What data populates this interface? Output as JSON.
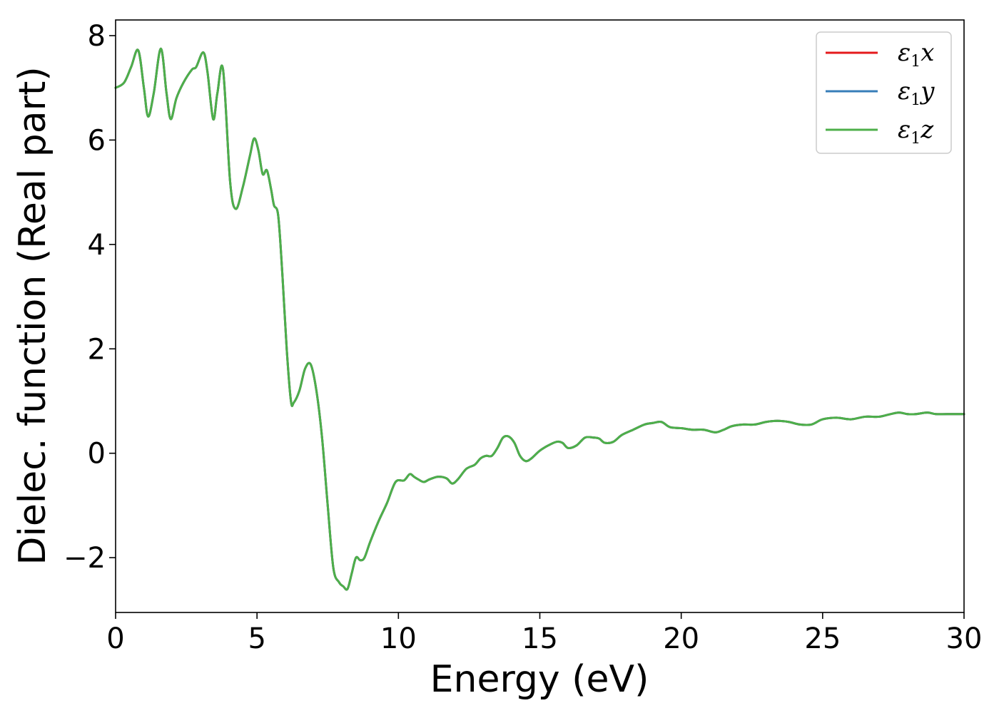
{
  "chart_data": {
    "type": "line",
    "title": "",
    "xlabel": "Energy (eV)",
    "ylabel": "Dielec. function (Real part)",
    "xlim": [
      0,
      30
    ],
    "ylim": [
      -3.05,
      8.3
    ],
    "xticks": [
      0,
      5,
      10,
      15,
      20,
      25,
      30
    ],
    "yticks": [
      -2,
      0,
      2,
      4,
      6,
      8
    ],
    "xtick_labels": [
      "0",
      "5",
      "10",
      "15",
      "20",
      "25",
      "30"
    ],
    "ytick_labels": [
      "−2",
      "0",
      "2",
      "4",
      "6",
      "8"
    ],
    "grid": false,
    "legend_position": "top-right",
    "x": [
      0.0,
      0.3,
      0.55,
      0.8,
      1.0,
      1.15,
      1.35,
      1.6,
      1.8,
      1.95,
      2.15,
      2.4,
      2.7,
      2.85,
      3.1,
      3.25,
      3.45,
      3.6,
      3.8,
      4.05,
      4.25,
      4.5,
      4.75,
      4.9,
      5.05,
      5.2,
      5.35,
      5.5,
      5.6,
      5.75,
      5.9,
      6.05,
      6.2,
      6.3,
      6.5,
      6.7,
      6.9,
      7.1,
      7.3,
      7.5,
      7.7,
      7.9,
      8.05,
      8.2,
      8.35,
      8.5,
      8.65,
      8.8,
      9.0,
      9.3,
      9.6,
      9.9,
      10.2,
      10.4,
      10.55,
      10.7,
      10.9,
      11.1,
      11.4,
      11.7,
      11.9,
      12.1,
      12.4,
      12.7,
      12.9,
      13.1,
      13.3,
      13.5,
      13.7,
      13.9,
      14.1,
      14.3,
      14.5,
      14.7,
      15.0,
      15.3,
      15.6,
      15.8,
      16.0,
      16.3,
      16.6,
      16.9,
      17.1,
      17.3,
      17.6,
      17.9,
      18.3,
      18.7,
      19.0,
      19.3,
      19.6,
      20.0,
      20.4,
      20.8,
      21.2,
      21.5,
      21.8,
      22.2,
      22.6,
      23.0,
      23.4,
      23.8,
      24.2,
      24.6,
      25.0,
      25.5,
      26.0,
      26.5,
      27.0,
      27.4,
      27.7,
      28.0,
      28.3,
      28.7,
      29.0,
      29.4,
      30.0
    ],
    "series": [
      {
        "name": "ε1x",
        "color": "#e41a1c",
        "values": [
          7.0,
          7.1,
          7.4,
          7.72,
          7.0,
          6.45,
          6.9,
          7.75,
          6.9,
          6.4,
          6.8,
          7.1,
          7.35,
          7.4,
          7.68,
          7.3,
          6.4,
          6.9,
          7.35,
          5.2,
          4.68,
          5.1,
          5.7,
          6.03,
          5.8,
          5.35,
          5.42,
          5.05,
          4.75,
          4.55,
          3.4,
          2.0,
          1.0,
          0.97,
          1.2,
          1.62,
          1.7,
          1.2,
          0.3,
          -1.0,
          -2.2,
          -2.47,
          -2.55,
          -2.6,
          -2.3,
          -2.0,
          -2.05,
          -2.0,
          -1.7,
          -1.3,
          -0.95,
          -0.55,
          -0.52,
          -0.4,
          -0.45,
          -0.5,
          -0.55,
          -0.5,
          -0.45,
          -0.48,
          -0.58,
          -0.5,
          -0.3,
          -0.22,
          -0.1,
          -0.05,
          -0.05,
          0.1,
          0.3,
          0.32,
          0.2,
          -0.05,
          -0.15,
          -0.1,
          0.05,
          0.15,
          0.22,
          0.2,
          0.1,
          0.15,
          0.3,
          0.3,
          0.28,
          0.2,
          0.22,
          0.35,
          0.45,
          0.55,
          0.58,
          0.6,
          0.5,
          0.48,
          0.45,
          0.45,
          0.4,
          0.45,
          0.52,
          0.55,
          0.55,
          0.6,
          0.62,
          0.6,
          0.55,
          0.55,
          0.65,
          0.68,
          0.65,
          0.7,
          0.7,
          0.75,
          0.78,
          0.75,
          0.75,
          0.78,
          0.75,
          0.75,
          0.75
        ]
      },
      {
        "name": "ε1y",
        "color": "#377eb8",
        "values": [
          7.0,
          7.1,
          7.4,
          7.72,
          7.0,
          6.45,
          6.9,
          7.75,
          6.9,
          6.4,
          6.8,
          7.1,
          7.35,
          7.4,
          7.68,
          7.3,
          6.4,
          6.9,
          7.35,
          5.2,
          4.68,
          5.1,
          5.7,
          6.03,
          5.8,
          5.35,
          5.42,
          5.05,
          4.75,
          4.55,
          3.4,
          2.0,
          1.0,
          0.97,
          1.2,
          1.62,
          1.7,
          1.2,
          0.3,
          -1.0,
          -2.2,
          -2.47,
          -2.55,
          -2.6,
          -2.3,
          -2.0,
          -2.05,
          -2.0,
          -1.7,
          -1.3,
          -0.95,
          -0.55,
          -0.52,
          -0.4,
          -0.45,
          -0.5,
          -0.55,
          -0.5,
          -0.45,
          -0.48,
          -0.58,
          -0.5,
          -0.3,
          -0.22,
          -0.1,
          -0.05,
          -0.05,
          0.1,
          0.3,
          0.32,
          0.2,
          -0.05,
          -0.15,
          -0.1,
          0.05,
          0.15,
          0.22,
          0.2,
          0.1,
          0.15,
          0.3,
          0.3,
          0.28,
          0.2,
          0.22,
          0.35,
          0.45,
          0.55,
          0.58,
          0.6,
          0.5,
          0.48,
          0.45,
          0.45,
          0.4,
          0.45,
          0.52,
          0.55,
          0.55,
          0.6,
          0.62,
          0.6,
          0.55,
          0.55,
          0.65,
          0.68,
          0.65,
          0.7,
          0.7,
          0.75,
          0.78,
          0.75,
          0.75,
          0.78,
          0.75,
          0.75,
          0.75
        ]
      },
      {
        "name": "ε1z",
        "color": "#4daf4a",
        "values": [
          7.0,
          7.1,
          7.4,
          7.72,
          7.0,
          6.45,
          6.9,
          7.75,
          6.9,
          6.4,
          6.8,
          7.1,
          7.35,
          7.4,
          7.68,
          7.3,
          6.4,
          6.9,
          7.35,
          5.2,
          4.68,
          5.1,
          5.7,
          6.03,
          5.8,
          5.35,
          5.42,
          5.05,
          4.75,
          4.55,
          3.4,
          2.0,
          1.0,
          0.97,
          1.2,
          1.62,
          1.7,
          1.2,
          0.3,
          -1.0,
          -2.2,
          -2.47,
          -2.55,
          -2.6,
          -2.3,
          -2.0,
          -2.05,
          -2.0,
          -1.7,
          -1.3,
          -0.95,
          -0.55,
          -0.52,
          -0.4,
          -0.45,
          -0.5,
          -0.55,
          -0.5,
          -0.45,
          -0.48,
          -0.58,
          -0.5,
          -0.3,
          -0.22,
          -0.1,
          -0.05,
          -0.05,
          0.1,
          0.3,
          0.32,
          0.2,
          -0.05,
          -0.15,
          -0.1,
          0.05,
          0.15,
          0.22,
          0.2,
          0.1,
          0.15,
          0.3,
          0.3,
          0.28,
          0.2,
          0.22,
          0.35,
          0.45,
          0.55,
          0.58,
          0.6,
          0.5,
          0.48,
          0.45,
          0.45,
          0.4,
          0.45,
          0.52,
          0.55,
          0.55,
          0.6,
          0.62,
          0.6,
          0.55,
          0.55,
          0.65,
          0.68,
          0.65,
          0.7,
          0.7,
          0.75,
          0.78,
          0.75,
          0.75,
          0.78,
          0.75,
          0.75,
          0.75
        ]
      }
    ],
    "legend": [
      {
        "symbol": "ε",
        "subscript": "1",
        "axis": "x"
      },
      {
        "symbol": "ε",
        "subscript": "1",
        "axis": "y"
      },
      {
        "symbol": "ε",
        "subscript": "1",
        "axis": "z"
      }
    ]
  }
}
